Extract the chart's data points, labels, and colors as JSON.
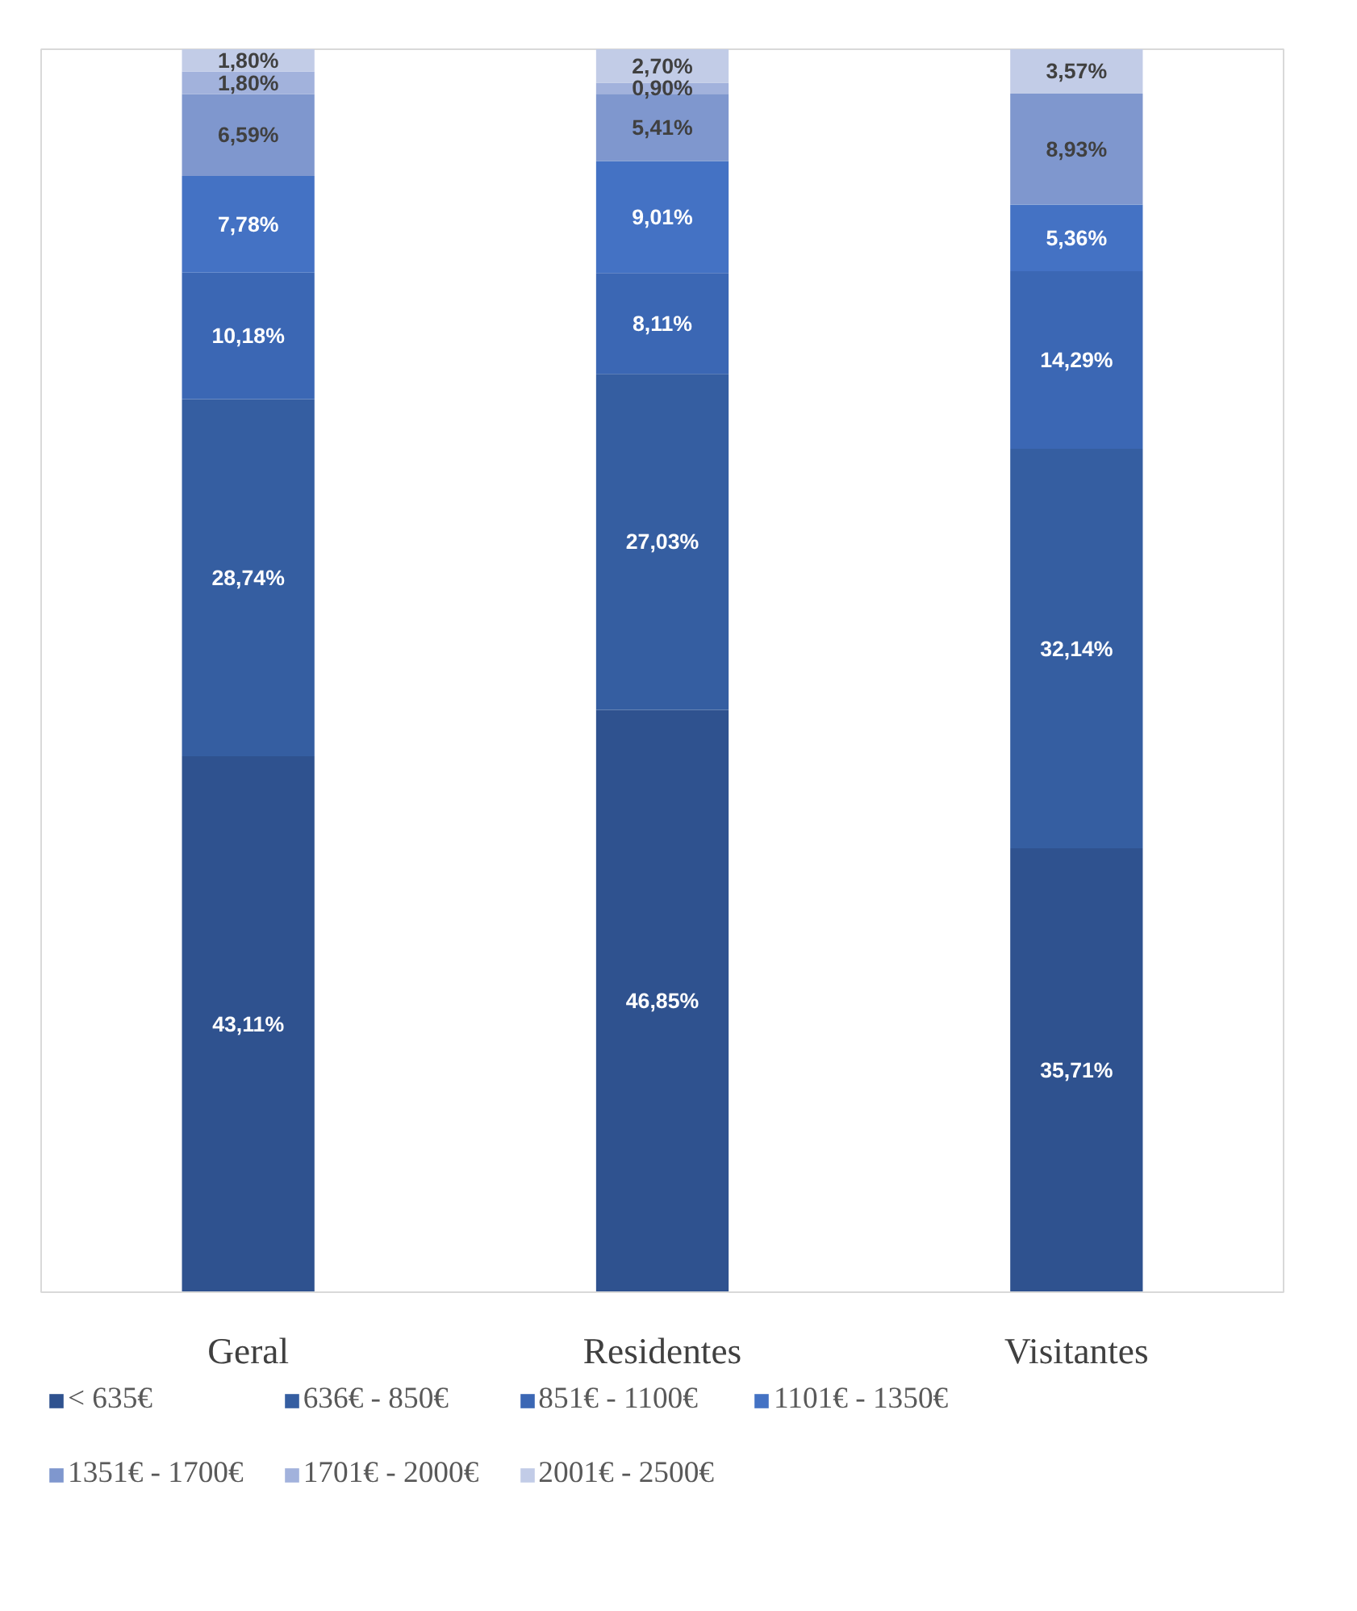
{
  "chart_data": {
    "type": "bar",
    "stacked": true,
    "categories": [
      "Geral",
      "Residentes",
      "Visitantes"
    ],
    "ylim": [
      0,
      100
    ],
    "tick_labels": "x",
    "grid": false,
    "legend": "bottom",
    "series": [
      {
        "name": "< 635€",
        "color": "#2f528f",
        "values": [
          43.11,
          46.85,
          35.71
        ],
        "value_labels": [
          "43,11%",
          "46,85%",
          "35,71%"
        ]
      },
      {
        "name": "636€ - 850€",
        "color": "#355ea1",
        "values": [
          28.74,
          27.03,
          32.14
        ],
        "value_labels": [
          "28,74%",
          "27,03%",
          "32,14%"
        ]
      },
      {
        "name": "851€ - 1100€",
        "color": "#3b67b4",
        "values": [
          10.18,
          8.11,
          14.29
        ],
        "value_labels": [
          "10,18%",
          "8,11%",
          "14,29%"
        ]
      },
      {
        "name": "1101€ - 1350€",
        "color": "#4472c4",
        "values": [
          7.78,
          9.01,
          5.36
        ],
        "value_labels": [
          "7,78%",
          "9,01%",
          "5,36%"
        ]
      },
      {
        "name": "1351€ - 1700€",
        "color": "#7f97ce",
        "values": [
          6.59,
          5.41,
          8.93
        ],
        "value_labels": [
          "6,59%",
          "5,41%",
          "8,93%"
        ]
      },
      {
        "name": "1701€ - 2000€",
        "color": "#a2b2dc",
        "values": [
          1.8,
          0.9,
          0
        ],
        "value_labels": [
          "1,80%",
          "0,90%",
          null
        ]
      },
      {
        "name": "2001€ - 2500€",
        "color": "#c2cce7",
        "values": [
          1.8,
          2.7,
          3.57
        ],
        "value_labels": [
          "1,80%",
          "2,70%",
          "3,57%"
        ]
      }
    ]
  }
}
